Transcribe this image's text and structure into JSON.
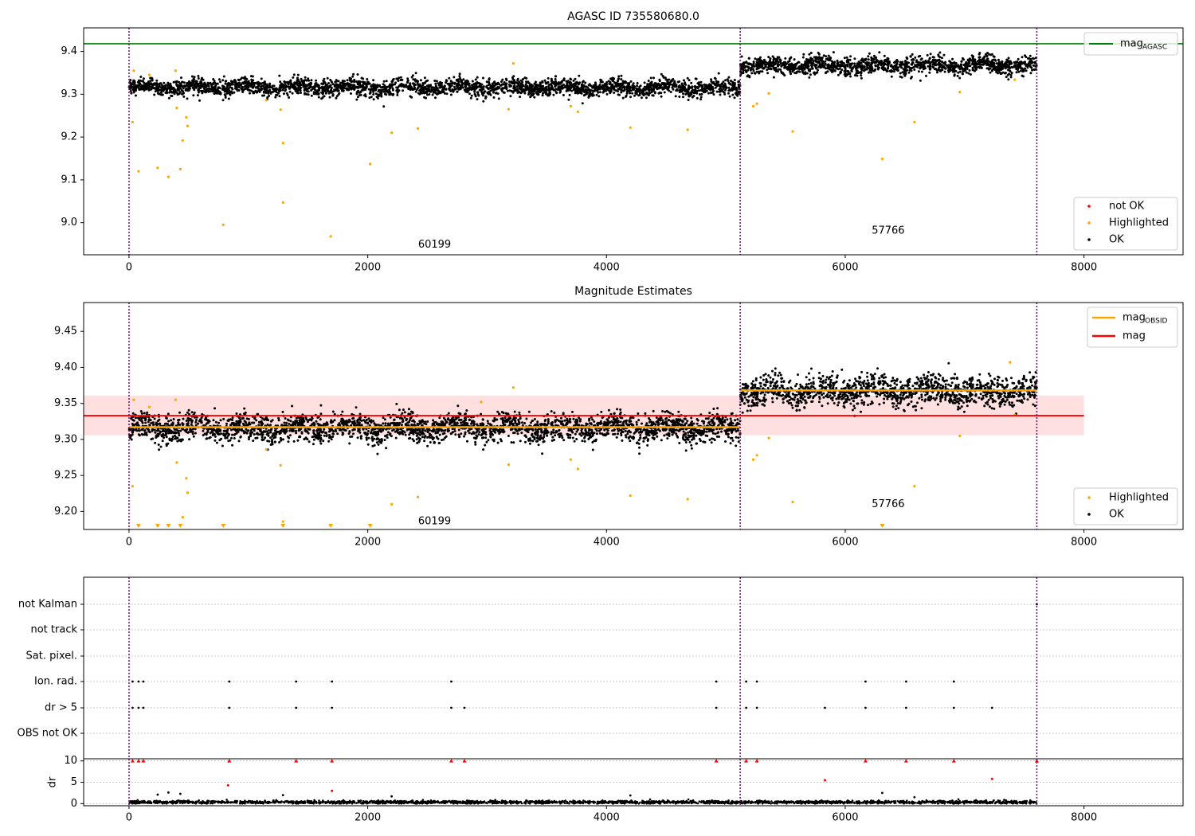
{
  "chart_data": [
    {
      "type": "scatter",
      "title": "AGASC ID 735580680.0",
      "xlim": [
        -380,
        8830
      ],
      "ylim": [
        8.925,
        9.455
      ],
      "xticks": [
        0,
        2000,
        4000,
        6000,
        8000
      ],
      "yticks": [
        9.0,
        9.1,
        9.2,
        9.3,
        9.4
      ],
      "ytick_labels": [
        "9.0",
        "9.1",
        "9.2",
        "9.3",
        "9.4"
      ],
      "grid": false,
      "hlines": [
        {
          "name": "mag_AGASC",
          "value": 9.418,
          "color": "#008000"
        }
      ],
      "vlines": [
        0,
        5120,
        7605
      ],
      "obsid_labels": [
        {
          "text": "60199",
          "x": 2560,
          "y": 8.948
        },
        {
          "text": "57766",
          "x": 6360,
          "y": 8.981
        }
      ],
      "series": [
        {
          "name": "OK",
          "color": "#000000",
          "segments": [
            {
              "x0": 0,
              "x1": 5120,
              "mean": 9.316,
              "spread": 0.0095
            },
            {
              "x0": 5120,
              "x1": 7605,
              "mean": 9.367,
              "spread": 0.0105
            }
          ]
        },
        {
          "name": "Highlighted",
          "color": "#ffa500",
          "points": [
            [
              30,
              9.235
            ],
            [
              40,
              9.355
            ],
            [
              80,
              9.12
            ],
            [
              170,
              9.345
            ],
            [
              240,
              9.128
            ],
            [
              330,
              9.107
            ],
            [
              390,
              9.355
            ],
            [
              400,
              9.268
            ],
            [
              430,
              9.125
            ],
            [
              450,
              9.192
            ],
            [
              480,
              9.246
            ],
            [
              490,
              9.226
            ],
            [
              790,
              8.995
            ],
            [
              1150,
              9.286
            ],
            [
              1270,
              9.264
            ],
            [
              1290,
              9.186
            ],
            [
              1290,
              9.047
            ],
            [
              1690,
              8.968
            ],
            [
              2020,
              9.137
            ],
            [
              2200,
              9.21
            ],
            [
              2420,
              9.22
            ],
            [
              3180,
              9.265
            ],
            [
              3220,
              9.372
            ],
            [
              3700,
              9.272
            ],
            [
              3760,
              9.259
            ],
            [
              4200,
              9.222
            ],
            [
              4680,
              9.217
            ],
            [
              5230,
              9.272
            ],
            [
              5260,
              9.278
            ],
            [
              5360,
              9.302
            ],
            [
              5560,
              9.213
            ],
            [
              6310,
              9.149
            ],
            [
              6580,
              9.235
            ],
            [
              6960,
              9.305
            ],
            [
              7420,
              9.334
            ]
          ]
        },
        {
          "name": "not OK",
          "color": "#ff0000",
          "points": []
        }
      ],
      "legend": {
        "placement": "top-right",
        "entries": [
          {
            "label": "mag",
            "sub": "AGASC",
            "kind": "line",
            "color": "#008000"
          }
        ]
      },
      "legend2": {
        "placement": "lower-right",
        "entries": [
          {
            "label": "not OK",
            "kind": "dot",
            "color": "#ff0000"
          },
          {
            "label": "Highlighted",
            "kind": "dot",
            "color": "#ffa500"
          },
          {
            "label": "OK",
            "kind": "dot",
            "color": "#000000"
          }
        ]
      }
    },
    {
      "type": "scatter",
      "title": "Magnitude Estimates",
      "xlim": [
        -380,
        8830
      ],
      "ylim": [
        9.175,
        9.49
      ],
      "xticks": [
        0,
        2000,
        4000,
        6000,
        8000
      ],
      "yticks": [
        9.2,
        9.25,
        9.3,
        9.35,
        9.4,
        9.45
      ],
      "ytick_labels": [
        "9.20",
        "9.25",
        "9.30",
        "9.35",
        "9.40",
        "9.45"
      ],
      "grid": false,
      "mag": 9.333,
      "mag_band": [
        9.306,
        9.361
      ],
      "mag_band_x": [
        -380,
        8000
      ],
      "mag_obsid": [
        {
          "x0": 0,
          "x1": 5120,
          "value": 9.317
        },
        {
          "x0": 5120,
          "x1": 7605,
          "value": 9.368
        }
      ],
      "vlines": [
        0,
        5120,
        7605
      ],
      "obsid_labels": [
        {
          "text": "60199",
          "x": 2560,
          "y": 9.186
        },
        {
          "text": "57766",
          "x": 6360,
          "y": 9.21
        }
      ],
      "clipped_markers_x": [
        80,
        240,
        330,
        430,
        790,
        1290,
        1690,
        2020,
        6310
      ],
      "series": [
        {
          "name": "OK",
          "color": "#000000",
          "segments": [
            {
              "x0": 0,
              "x1": 5120,
              "mean": 9.316,
              "spread": 0.0095
            },
            {
              "x0": 5120,
              "x1": 7605,
              "mean": 9.367,
              "spread": 0.0105
            }
          ]
        },
        {
          "name": "Highlighted",
          "color": "#ffa500",
          "points": [
            [
              30,
              9.235
            ],
            [
              40,
              9.355
            ],
            [
              170,
              9.345
            ],
            [
              390,
              9.355
            ],
            [
              400,
              9.268
            ],
            [
              450,
              9.192
            ],
            [
              480,
              9.246
            ],
            [
              490,
              9.226
            ],
            [
              1150,
              9.286
            ],
            [
              1270,
              9.264
            ],
            [
              1290,
              9.186
            ],
            [
              2200,
              9.21
            ],
            [
              2420,
              9.22
            ],
            [
              2950,
              9.352
            ],
            [
              3180,
              9.265
            ],
            [
              3220,
              9.372
            ],
            [
              3700,
              9.272
            ],
            [
              3760,
              9.259
            ],
            [
              4200,
              9.222
            ],
            [
              4680,
              9.217
            ],
            [
              5230,
              9.272
            ],
            [
              5260,
              9.278
            ],
            [
              5360,
              9.302
            ],
            [
              5560,
              9.213
            ],
            [
              6580,
              9.235
            ],
            [
              6960,
              9.305
            ],
            [
              7420,
              9.334
            ],
            [
              7380,
              9.407
            ]
          ]
        }
      ],
      "legend": {
        "placement": "top-right",
        "entries": [
          {
            "label": "mag",
            "sub": "OBSID",
            "kind": "line",
            "color": "#ffa500"
          },
          {
            "label": "mag",
            "sub": "",
            "kind": "line",
            "color": "#ff0000"
          }
        ]
      },
      "legend2": {
        "placement": "lower-right",
        "entries": [
          {
            "label": "Highlighted",
            "kind": "dot",
            "color": "#ffa500"
          },
          {
            "label": "OK",
            "kind": "dot",
            "color": "#000000"
          }
        ]
      }
    },
    {
      "type": "scatter",
      "title": "",
      "xlim": [
        -380,
        8830
      ],
      "xticks": [
        0,
        2000,
        4000,
        6000,
        8000
      ],
      "vlines": [
        0,
        5120,
        7605
      ],
      "flags": {
        "categories": [
          "not Kalman",
          "not track",
          "Sat. pixel.",
          "Ion. rad.",
          "dr > 5",
          "OBS not OK"
        ],
        "grid": "dotted",
        "events": {
          "not Kalman": [
            7605
          ],
          "not track": [],
          "Sat. pixel.": [],
          "Ion. rad.": [
            30,
            80,
            120,
            840,
            1400,
            1700,
            2700,
            4920,
            5170,
            5260,
            6170,
            6510,
            6910
          ],
          "dr > 5": [
            30,
            80,
            120,
            840,
            1400,
            1700,
            2700,
            2810,
            4920,
            5170,
            5260,
            5830,
            6170,
            6510,
            6910,
            7230
          ],
          "OBS not OK": []
        }
      },
      "dr": {
        "ylabel": "dr",
        "ylim": [
          -0.5,
          10.5
        ],
        "yticks": [
          0,
          5,
          10
        ],
        "ytick_labels": [
          "0",
          "5",
          "10"
        ],
        "baseline_mean": 0.35,
        "baseline_spread": 0.3,
        "capped_value": 10,
        "capped_x": [
          30,
          80,
          120,
          840,
          1400,
          1700,
          2700,
          2810,
          4920,
          5170,
          5260,
          6170,
          6510,
          6910,
          7605
        ],
        "red_points": [
          [
            830,
            4.3
          ],
          [
            1700,
            3.0
          ],
          [
            5830,
            5.5
          ],
          [
            7230,
            5.8
          ]
        ],
        "black_points": [
          [
            240,
            2.1
          ],
          [
            330,
            2.6
          ],
          [
            430,
            2.3
          ],
          [
            1290,
            2.0
          ],
          [
            2200,
            1.7
          ],
          [
            4200,
            1.9
          ],
          [
            6310,
            2.5
          ],
          [
            6580,
            1.5
          ]
        ]
      }
    }
  ]
}
